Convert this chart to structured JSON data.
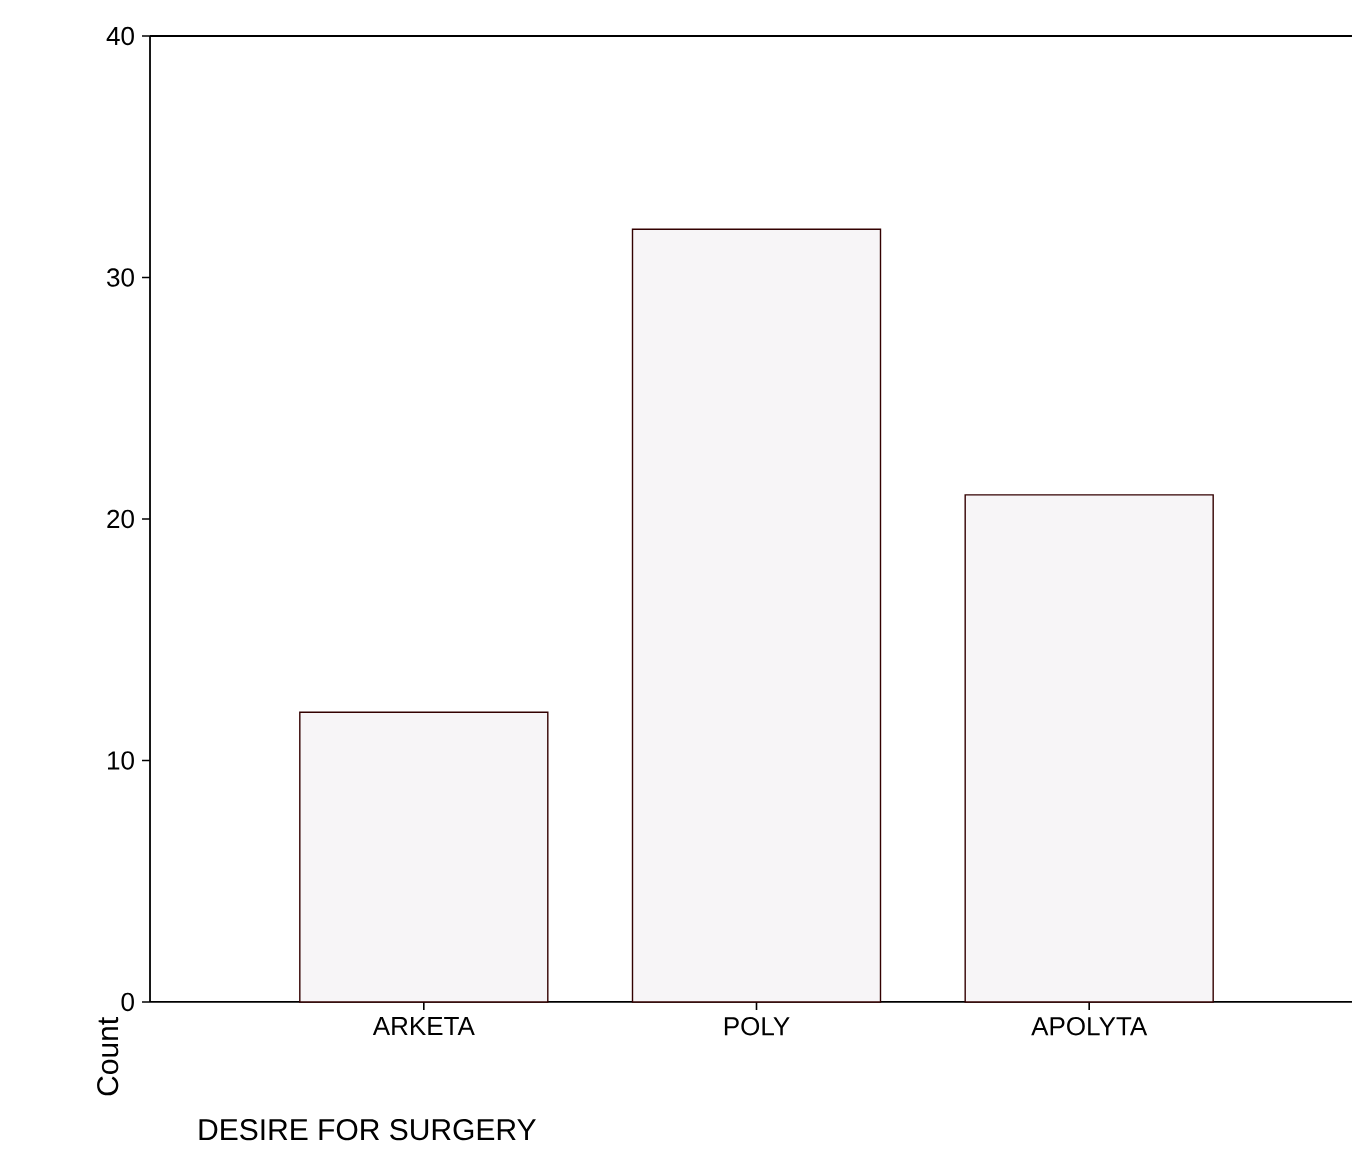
{
  "chart_data": {
    "type": "bar",
    "categories": [
      "ARKETA",
      "POLY",
      "APOLYTA"
    ],
    "values": [
      12,
      32,
      21
    ],
    "color": "#f7f5f7",
    "xlabel": "DESIRE FOR SURGERY",
    "ylabel": "Count",
    "ylim": [
      0,
      40
    ],
    "yticks": [
      0,
      10,
      20,
      30,
      40
    ],
    "grid": false
  }
}
